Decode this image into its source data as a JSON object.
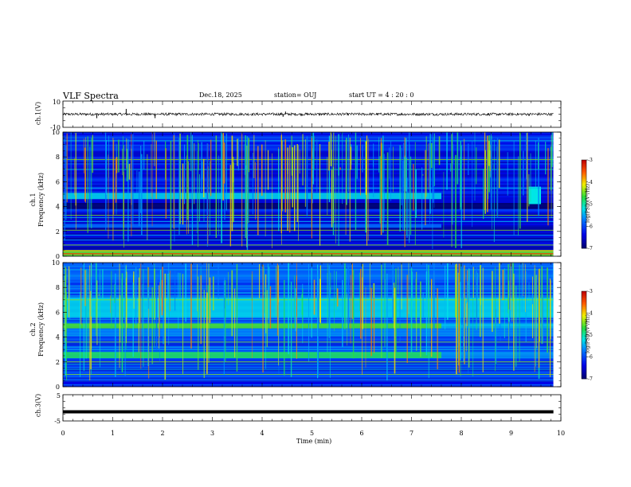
{
  "header": {
    "title": "VLF Spectra",
    "date": "Dec.18, 2025",
    "station": "station= OUJ",
    "start": "start  UT =   4 : 20 : 0"
  },
  "chart_data": [
    {
      "type": "line",
      "name": "ch.1 waveform",
      "ylabel": "ch.1(V)",
      "ylim": [
        -10,
        10
      ],
      "ytick_labels": [
        "-10",
        "10"
      ],
      "baseline": 0,
      "noise_amplitude": 1,
      "spikes": [
        {
          "x": 0.68,
          "y": -3
        },
        {
          "x": 1.27,
          "y": 4
        },
        {
          "x": 1.85,
          "y": -3
        },
        {
          "x": 4.42,
          "y": -2
        },
        {
          "x": 4.47,
          "y": 2
        }
      ]
    },
    {
      "type": "heatmap",
      "name": "ch.1 spectrogram",
      "ylabel": "ch.1\nFrequency (kHz)",
      "ylim": [
        0,
        10
      ],
      "yticks": [
        0,
        2,
        4,
        6,
        8,
        10
      ],
      "features": [
        {
          "band": [
            4.6,
            5.1
          ],
          "from": 0.0,
          "to": 7.6,
          "level": -5.3,
          "label": "~4.8 kHz band"
        },
        {
          "band": [
            2.3,
            2.6
          ],
          "from": 0.0,
          "to": 7.6,
          "level": -5.8,
          "label": "~2.5 kHz band"
        },
        {
          "band": [
            3.8,
            4.3
          ],
          "from": 0.0,
          "to": 9.85,
          "level": -7.0,
          "label": "quiet gap"
        },
        {
          "band": [
            0.0,
            0.5
          ],
          "from": 0.0,
          "to": 9.85,
          "level": -4.5,
          "label": "low-frequency line"
        }
      ],
      "burst": {
        "x": [
          9.35,
          9.6
        ],
        "band": [
          4.2,
          5.6
        ]
      }
    },
    {
      "type": "heatmap",
      "name": "ch.2 spectrogram",
      "ylabel": "ch.2\nFrequency (kHz)",
      "ylim": [
        0,
        10
      ],
      "yticks": [
        0,
        2,
        4,
        6,
        8,
        10
      ],
      "features": [
        {
          "band": [
            4.7,
            5.1
          ],
          "from": 0.0,
          "to": 7.6,
          "level": -4.6,
          "label": "~4.9 kHz band"
        },
        {
          "band": [
            2.3,
            2.8
          ],
          "from": 0.0,
          "to": 7.6,
          "level": -4.8,
          "label": "~2.6 kHz band"
        },
        {
          "band": [
            5.6,
            7.2
          ],
          "from": 0.0,
          "to": 9.85,
          "level": -5.3,
          "label": "broadband 6 kHz"
        }
      ]
    },
    {
      "type": "line",
      "name": "ch.3 waveform",
      "ylabel": "ch.3(V)",
      "ylim": [
        -5,
        5
      ],
      "ytick_labels": [
        "-5",
        "5"
      ],
      "baseline": -1.5
    }
  ],
  "xaxis": {
    "label": "Time  (min)",
    "range": [
      0,
      10
    ],
    "tick_labels": [
      "0",
      "1",
      "2",
      "3",
      "4",
      "5",
      "6",
      "7",
      "8",
      "9",
      "10"
    ],
    "data_end": 9.85
  },
  "colorbar": {
    "label": "log(PSD)(V²/Hz)",
    "range": [
      -7,
      -3
    ],
    "tick_labels": [
      "-3",
      "-4",
      "-5",
      "-6",
      "-7"
    ]
  }
}
